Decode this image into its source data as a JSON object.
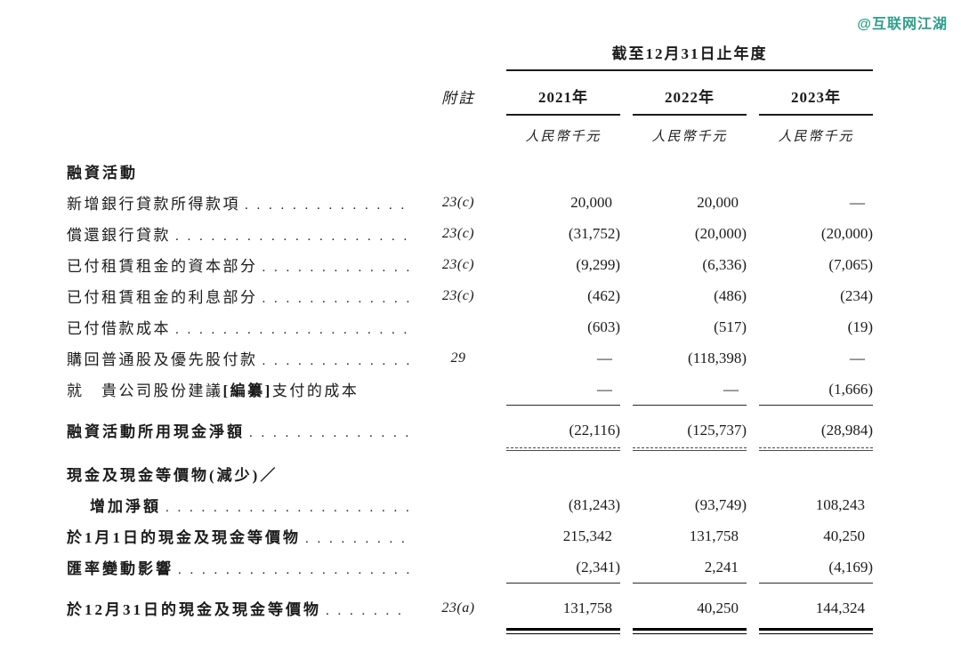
{
  "watermark": {
    "text": "@互联网江湖",
    "color": "#2e9e8c"
  },
  "colors": {
    "text": "#1b1b1b",
    "rule": "#000000"
  },
  "table": {
    "period_header": "截至12月31日止年度",
    "note_header": "附註",
    "year_headers": [
      "2021年",
      "2022年",
      "2023年"
    ],
    "unit_labels": [
      "人民幣千元",
      "人民幣千元",
      "人民幣千元"
    ],
    "rows": [
      {
        "label": "融資活動",
        "note": "",
        "values": [
          "",
          "",
          ""
        ]
      },
      {
        "label": "新增銀行貸款所得款項",
        "note": "23(c)",
        "values": [
          "20,000",
          "20,000",
          "—"
        ]
      },
      {
        "label": "償還銀行貸款",
        "note": "23(c)",
        "values": [
          "(31,752)",
          "(20,000)",
          "(20,000)"
        ]
      },
      {
        "label": "已付租賃租金的資本部分",
        "note": "23(c)",
        "values": [
          "(9,299)",
          "(6,336)",
          "(7,065)"
        ]
      },
      {
        "label": "已付租賃租金的利息部分",
        "note": "23(c)",
        "values": [
          "(462)",
          "(486)",
          "(234)"
        ]
      },
      {
        "label": "已付借款成本",
        "note": "",
        "values": [
          "(603)",
          "(517)",
          "(19)"
        ]
      },
      {
        "label": "購回普通股及優先股付款",
        "note": "29",
        "values": [
          "—",
          "(118,398)",
          "—"
        ]
      },
      {
        "label_parts": [
          "就　貴公司股份建議",
          "[編纂]",
          "支付的成本"
        ],
        "note": "",
        "values": [
          "—",
          "—",
          "(1,666)"
        ]
      },
      {
        "label": "融資活動所用現金淨額",
        "note": "",
        "values": [
          "(22,116)",
          "(125,737)",
          "(28,984)"
        ]
      },
      {
        "label": "現金及現金等價物(減少)／",
        "note": "",
        "values": [
          "",
          "",
          ""
        ]
      },
      {
        "label": "增加淨額",
        "note": "",
        "values": [
          "(81,243)",
          "(93,749)",
          "108,243"
        ]
      },
      {
        "label": "於1月1日的現金及現金等價物",
        "note": "",
        "values": [
          "215,342",
          "131,758",
          "40,250"
        ]
      },
      {
        "label": "匯率變動影響",
        "note": "",
        "values": [
          "(2,341)",
          "2,241",
          "(4,169)"
        ]
      },
      {
        "label": "於12月31日的現金及現金等價物",
        "note": "23(a)",
        "values": [
          "131,758",
          "40,250",
          "144,324"
        ]
      }
    ]
  }
}
